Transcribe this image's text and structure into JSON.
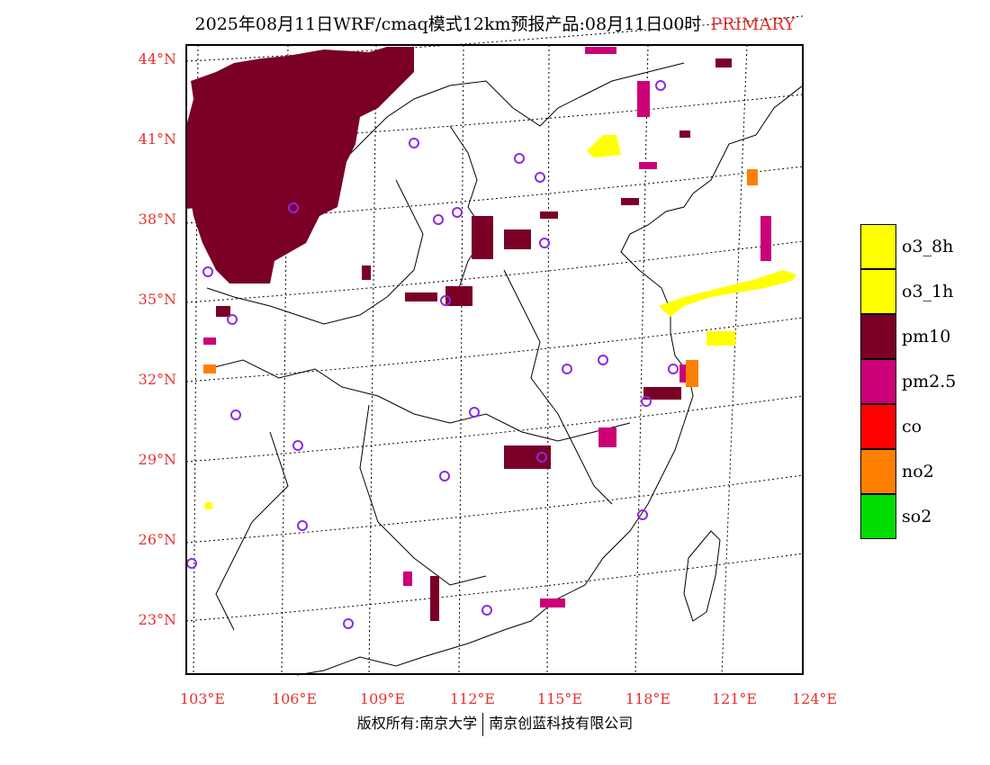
{
  "title": {
    "main": "2025年08月11日WRF/cmaq模式12km预报产品:08月11日00时",
    "tag": "PRIMARY"
  },
  "axes": {
    "lat_labels": [
      "44°N",
      "41°N",
      "38°N",
      "35°N",
      "32°N",
      "29°N",
      "26°N",
      "23°N"
    ],
    "lon_labels": [
      "103°E",
      "106°E",
      "109°E",
      "112°E",
      "115°E",
      "118°E",
      "121°E",
      "124°E"
    ]
  },
  "legend": [
    {
      "label": "o3_8h",
      "color": "#ffff00"
    },
    {
      "label": "o3_1h",
      "color": "#ffff00"
    },
    {
      "label": "pm10",
      "color": "#7a0026"
    },
    {
      "label": "pm2.5",
      "color": "#cc0077"
    },
    {
      "label": "co",
      "color": "#ff0000"
    },
    {
      "label": "no2",
      "color": "#ff7f00"
    },
    {
      "label": "so2",
      "color": "#00dd00"
    }
  ],
  "footer": {
    "left": "版权所有:南京大学",
    "right": "南京创蓝科技有限公司"
  }
}
